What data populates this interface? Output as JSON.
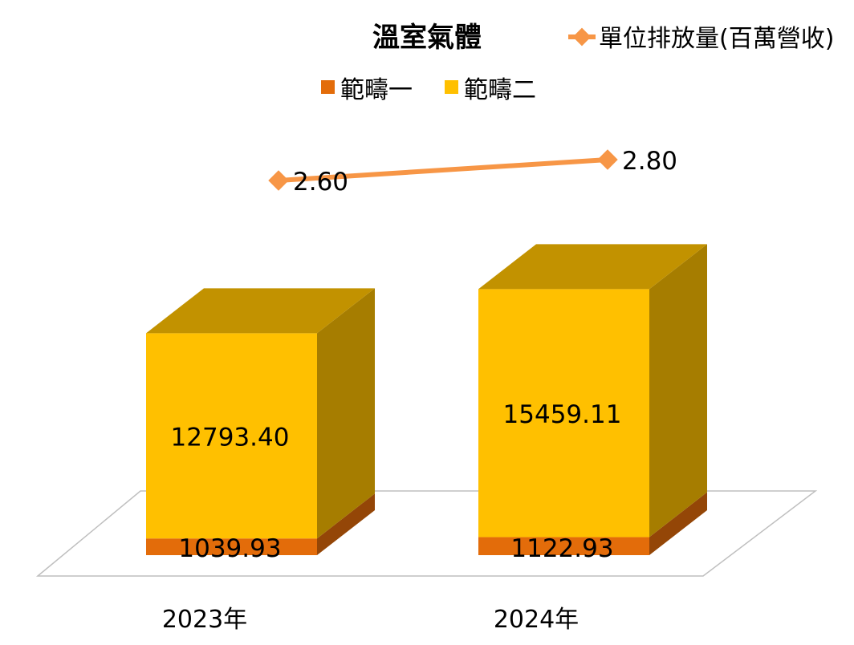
{
  "chart_data": {
    "type": "bar",
    "stacked": true,
    "three_d": true,
    "title": "溫室氣體",
    "categories": [
      "2023年",
      "2024年"
    ],
    "series": [
      {
        "name": "範疇一",
        "values": [
          1039.93,
          1122.93
        ],
        "color": "#E36C0A",
        "label_text": [
          "1039.93",
          "1122.93"
        ]
      },
      {
        "name": "範疇二",
        "values": [
          12793.4,
          15459.11
        ],
        "color": "#FFC000",
        "label_text": [
          "12793.40",
          "15459.11"
        ]
      }
    ],
    "line_series": {
      "name": "單位排放量(百萬營收)",
      "values": [
        2.6,
        2.8
      ],
      "label_text": [
        "2.60",
        "2.80"
      ],
      "color": "#F79646",
      "marker": "diamond"
    },
    "legend_position": "top",
    "grid": false
  }
}
